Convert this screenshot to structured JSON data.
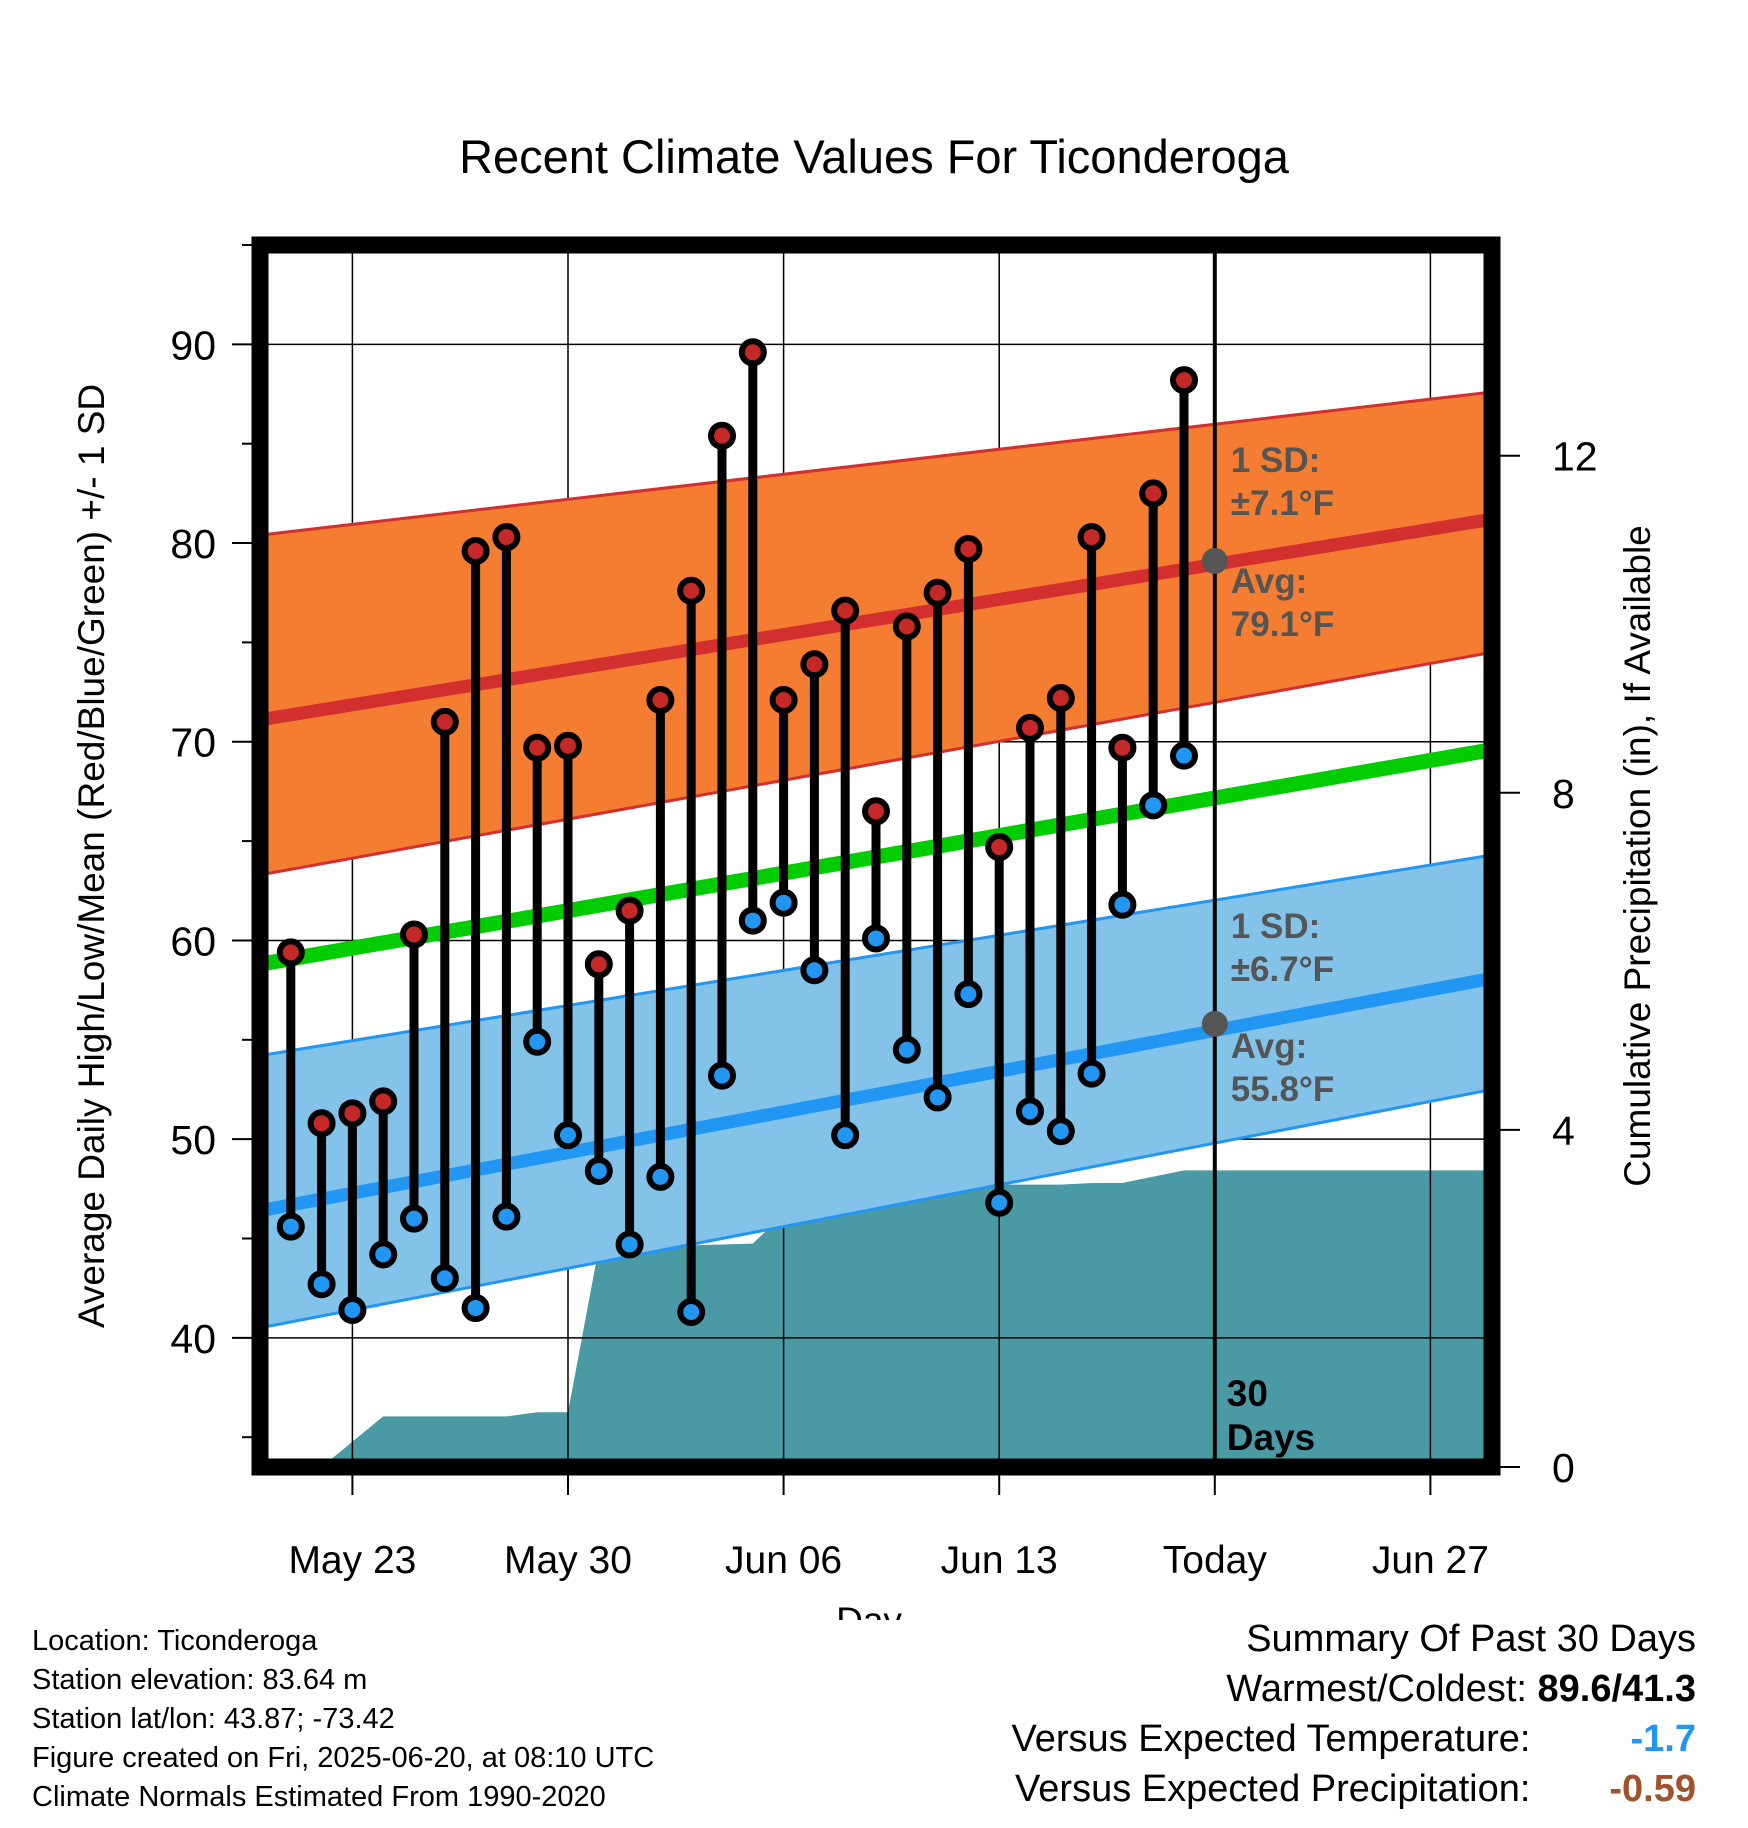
{
  "chart_data": {
    "type": "line",
    "title": "Recent Climate Values For Ticonderoga",
    "xlabel": "Day",
    "ylabel": "Average Daily High/Low/Mean (Red/Blue/Green) +/- 1 SD",
    "y2label": "Cumulative Precipitation (in), If Available",
    "x_range_days": [
      0,
      40
    ],
    "x_ticks": [
      {
        "day": 3,
        "label": "May 23"
      },
      {
        "day": 10,
        "label": "May 30"
      },
      {
        "day": 17,
        "label": "Jun 06"
      },
      {
        "day": 24,
        "label": "Jun 13"
      },
      {
        "day": 31,
        "label": "Today"
      },
      {
        "day": 38,
        "label": "Jun 27"
      }
    ],
    "ylim": [
      33.5,
      95
    ],
    "y_ticks": [
      40,
      50,
      60,
      70,
      80,
      90
    ],
    "y2lim": [
      0,
      14.5
    ],
    "y2_ticks": [
      0,
      4,
      8,
      12
    ],
    "grid": true,
    "today_day": 31,
    "today_label": "30\nDays",
    "series": [
      {
        "name": "High",
        "color": "#c62828",
        "days": [
          1,
          2,
          3,
          4,
          5,
          6,
          7,
          8,
          9,
          10,
          11,
          12,
          13,
          14,
          15,
          16,
          17,
          18,
          19,
          20,
          21,
          22,
          23,
          24,
          25,
          26,
          27,
          28,
          29,
          30
        ],
        "values": [
          59.4,
          50.8,
          51.3,
          51.9,
          60.3,
          71.0,
          79.6,
          80.3,
          69.7,
          69.8,
          58.8,
          61.5,
          72.1,
          77.6,
          85.4,
          89.6,
          72.1,
          73.9,
          76.6,
          66.5,
          75.8,
          77.5,
          79.7,
          64.7,
          70.7,
          72.2,
          80.3,
          69.7,
          82.5,
          88.2
        ]
      },
      {
        "name": "Low",
        "color": "#2196f3",
        "days": [
          1,
          2,
          3,
          4,
          5,
          6,
          7,
          8,
          9,
          10,
          11,
          12,
          13,
          14,
          15,
          16,
          17,
          18,
          19,
          20,
          21,
          22,
          23,
          24,
          25,
          26,
          27,
          28,
          29,
          30
        ],
        "values": [
          45.6,
          42.7,
          41.4,
          44.2,
          46.0,
          43.0,
          41.5,
          46.1,
          54.9,
          50.2,
          48.4,
          44.7,
          48.1,
          41.3,
          53.2,
          61.0,
          61.9,
          58.5,
          50.2,
          60.1,
          54.5,
          52.1,
          57.3,
          46.8,
          51.4,
          50.4,
          53.3,
          61.8,
          66.8,
          69.3
        ]
      }
    ],
    "normals": {
      "high_avg": {
        "start": 71.1,
        "end": 81.2
      },
      "high_sd_upper": {
        "start": 80.4,
        "end": 87.6
      },
      "high_sd_lower": {
        "start": 63.3,
        "end": 74.5
      },
      "low_avg": {
        "start": 46.4,
        "end": 58.1
      },
      "low_sd_upper": {
        "start": 54.2,
        "end": 64.3
      },
      "low_sd_lower": {
        "start": 40.5,
        "end": 52.5
      },
      "mean_avg": {
        "start": 58.8,
        "end": 69.6
      }
    },
    "precip_cumulative": {
      "color": "#4a9aa5",
      "days": [
        2,
        4,
        8,
        9,
        10,
        11,
        16,
        17,
        19,
        20,
        21,
        26,
        27,
        28,
        30,
        31,
        40
      ],
      "values": [
        0,
        0.6,
        0.6,
        0.65,
        0.65,
        2.6,
        2.65,
        3.0,
        3.0,
        3.05,
        3.35,
        3.35,
        3.37,
        3.37,
        3.52,
        3.52,
        3.52
      ]
    },
    "annotations": {
      "high_sd": {
        "line1": "1 SD:",
        "line2": "±7.1°F"
      },
      "high_avg": {
        "line1": "Avg:",
        "line2": "79.1°F",
        "value": 79.1
      },
      "low_sd": {
        "line1": "1 SD:",
        "line2": "±6.7°F"
      },
      "low_avg": {
        "line1": "Avg:",
        "line2": "55.8°F",
        "value": 55.8
      }
    }
  },
  "footer_left": [
    "Location: Ticonderoga",
    "Station elevation: 83.64 m",
    "Station lat/lon: 43.87; -73.42",
    "Figure created on Fri, 2025-06-20, at 08:10 UTC",
    "Climate Normals Estimated From 1990-2020"
  ],
  "summary": {
    "title": "Summary Of Past 30 Days",
    "warmest_label": "Warmest/Coldest:",
    "warmest_value": "89.6/41.3",
    "temp_label": "Versus Expected Temperature:",
    "temp_value": "-1.7",
    "temp_color": "#2196f3",
    "precip_label": "Versus Expected Precipitation:",
    "precip_value": "-0.59",
    "precip_color": "#a0522d"
  }
}
